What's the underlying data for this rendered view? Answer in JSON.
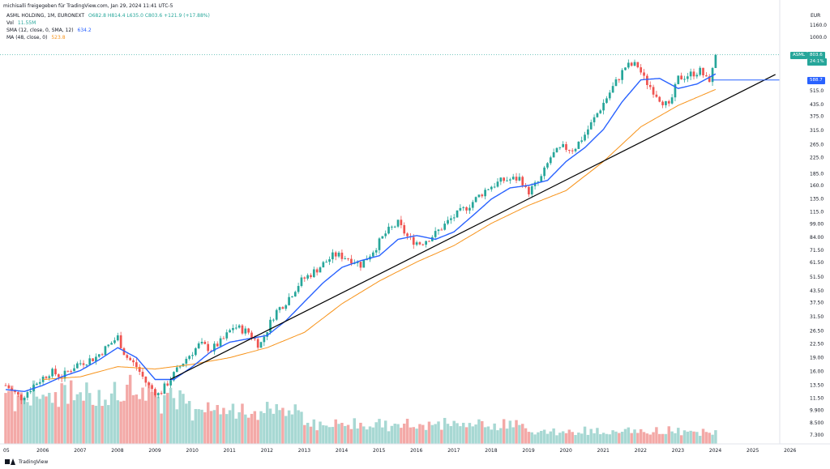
{
  "header": {
    "attribution": "michisalli freigegeben für TradingView.com, Jan 29, 2024 11:41 UTC-5"
  },
  "legend": {
    "symbol_line": {
      "name": "ASML HOLDING, 1M, EURONEXT",
      "ohlc": "O682.8  H814.4  L635.0  C803.6  +121.9 (+17.88%)"
    },
    "vol": {
      "label": "Vol",
      "value": "11.55M"
    },
    "sma": {
      "label": "SMA (12, close, 0, SMA, 12)",
      "value": "634.2"
    },
    "ma": {
      "label": "MA (48, close, 0)",
      "value": "523.8"
    }
  },
  "currency": "EUR",
  "badges": {
    "symbol": "ASML",
    "price": "803.6",
    "countdown": "24:1%",
    "line_level": "588.7"
  },
  "footer": {
    "brand": "TradingView"
  },
  "colors": {
    "up": "#26a69a",
    "down": "#ef5350",
    "vol_up": "#a7d8d3",
    "vol_down": "#f3a9a7",
    "sma": "#2962ff",
    "ma": "#f7931a",
    "trend": "#000000",
    "level": "#2962ff"
  },
  "chart_data": {
    "type": "candlestick",
    "title": "ASML HOLDING, 1M, EURONEXT",
    "y_scale": "log",
    "ylim": [
      6.5,
      1300
    ],
    "xlim": [
      2005.0,
      2026.7
    ],
    "y_ticks": [
      "1160.0",
      "1000.0",
      "515.0",
      "435.0",
      "375.0",
      "315.0",
      "265.0",
      "225.0",
      "185.0",
      "160.0",
      "135.0",
      "115.0",
      "99.00",
      "84.00",
      "71.50",
      "61.50",
      "51.50",
      "43.50",
      "37.50",
      "31.50",
      "26.50",
      "22.50",
      "19.00",
      "16.00",
      "13.50",
      "11.50",
      "9.900",
      "8.500",
      "7.300"
    ],
    "x_ticks": [
      "05",
      "2006",
      "2007",
      "2008",
      "2009",
      "2010",
      "2011",
      "2012",
      "2013",
      "2014",
      "2015",
      "2016",
      "2017",
      "2018",
      "2019",
      "2020",
      "2021",
      "2022",
      "2023",
      "2024",
      "2025",
      "2026"
    ],
    "anchors": [
      [
        2005.0,
        13.5
      ],
      [
        2005.4,
        11.5
      ],
      [
        2005.8,
        13.8
      ],
      [
        2006.2,
        16.0
      ],
      [
        2006.5,
        15.0
      ],
      [
        2006.9,
        17.5
      ],
      [
        2007.4,
        19.0
      ],
      [
        2007.8,
        22.5
      ],
      [
        2008.0,
        24.5
      ],
      [
        2008.2,
        19.5
      ],
      [
        2008.5,
        17.0
      ],
      [
        2008.8,
        13.5
      ],
      [
        2009.1,
        12.0
      ],
      [
        2009.4,
        14.5
      ],
      [
        2009.8,
        18.5
      ],
      [
        2010.2,
        22.5
      ],
      [
        2010.5,
        21.0
      ],
      [
        2010.8,
        23.5
      ],
      [
        2011.1,
        28.0
      ],
      [
        2011.5,
        26.0
      ],
      [
        2011.8,
        22.0
      ],
      [
        2012.2,
        33.0
      ],
      [
        2012.5,
        38.0
      ],
      [
        2012.9,
        49.0
      ],
      [
        2013.3,
        56.0
      ],
      [
        2013.8,
        68.0
      ],
      [
        2014.2,
        65.0
      ],
      [
        2014.5,
        60.0
      ],
      [
        2014.8,
        70.0
      ],
      [
        2015.2,
        90.0
      ],
      [
        2015.5,
        100.0
      ],
      [
        2015.8,
        82.0
      ],
      [
        2016.1,
        78.0
      ],
      [
        2016.5,
        88.0
      ],
      [
        2016.9,
        105.0
      ],
      [
        2017.4,
        125.0
      ],
      [
        2017.9,
        155.0
      ],
      [
        2018.3,
        170.0
      ],
      [
        2018.8,
        175.0
      ],
      [
        2018.95,
        145.0
      ],
      [
        2019.3,
        170.0
      ],
      [
        2019.6,
        230.0
      ],
      [
        2019.9,
        255.0
      ],
      [
        2020.2,
        250.0
      ],
      [
        2020.5,
        300.0
      ],
      [
        2020.9,
        410.0
      ],
      [
        2021.3,
        560.0
      ],
      [
        2021.6,
        700.0
      ],
      [
        2021.9,
        710.0
      ],
      [
        2022.1,
        590.0
      ],
      [
        2022.5,
        470.0
      ],
      [
        2022.75,
        420.0
      ],
      [
        2023.0,
        600.0
      ],
      [
        2023.3,
        630.0
      ],
      [
        2023.6,
        660.0
      ],
      [
        2023.8,
        570.0
      ],
      [
        2023.95,
        690.0
      ],
      [
        2024.0,
        803.6
      ]
    ],
    "sma_anchors": [
      [
        2005.0,
        12.8
      ],
      [
        2005.5,
        12.5
      ],
      [
        2006.0,
        13.5
      ],
      [
        2006.5,
        15.0
      ],
      [
        2007.0,
        16.2
      ],
      [
        2007.5,
        18.5
      ],
      [
        2008.0,
        21.5
      ],
      [
        2008.5,
        19.0
      ],
      [
        2009.0,
        14.5
      ],
      [
        2009.5,
        14.5
      ],
      [
        2010.0,
        17.0
      ],
      [
        2010.5,
        20.5
      ],
      [
        2011.0,
        23.0
      ],
      [
        2011.5,
        24.0
      ],
      [
        2012.0,
        25.0
      ],
      [
        2012.5,
        30.0
      ],
      [
        2013.0,
        38.0
      ],
      [
        2013.5,
        48.0
      ],
      [
        2014.0,
        58.0
      ],
      [
        2014.5,
        63.0
      ],
      [
        2015.0,
        67.0
      ],
      [
        2015.5,
        82.0
      ],
      [
        2016.0,
        86.0
      ],
      [
        2016.5,
        82.0
      ],
      [
        2017.0,
        90.0
      ],
      [
        2017.5,
        110.0
      ],
      [
        2018.0,
        135.0
      ],
      [
        2018.5,
        155.0
      ],
      [
        2019.0,
        160.0
      ],
      [
        2019.5,
        170.0
      ],
      [
        2020.0,
        215.0
      ],
      [
        2020.5,
        255.0
      ],
      [
        2021.0,
        320.0
      ],
      [
        2021.5,
        450.0
      ],
      [
        2022.0,
        590.0
      ],
      [
        2022.5,
        600.0
      ],
      [
        2023.0,
        530.0
      ],
      [
        2023.5,
        560.0
      ],
      [
        2024.0,
        634.2
      ]
    ],
    "ma_anchors": [
      [
        2006.0,
        14.5
      ],
      [
        2007.0,
        15.0
      ],
      [
        2008.0,
        17.0
      ],
      [
        2009.0,
        16.5
      ],
      [
        2010.0,
        17.5
      ],
      [
        2011.0,
        19.0
      ],
      [
        2012.0,
        21.5
      ],
      [
        2013.0,
        26.0
      ],
      [
        2014.0,
        37.0
      ],
      [
        2015.0,
        49.0
      ],
      [
        2016.0,
        62.0
      ],
      [
        2017.0,
        76.0
      ],
      [
        2018.0,
        100.0
      ],
      [
        2019.0,
        125.0
      ],
      [
        2020.0,
        150.0
      ],
      [
        2021.0,
        215.0
      ],
      [
        2022.0,
        330.0
      ],
      [
        2023.0,
        430.0
      ],
      [
        2024.0,
        523.8
      ]
    ],
    "trendline": [
      [
        2009.4,
        14.5
      ],
      [
        2025.6,
        630.0
      ]
    ],
    "level_line": {
      "from": 2023.9,
      "value": 588.7
    },
    "current_price": 803.6,
    "volume_pattern": [
      0.62,
      0.48,
      0.55,
      0.4,
      0.52,
      0.45,
      0.58,
      0.5,
      0.47,
      0.6,
      0.42,
      0.55,
      0.49,
      0.63,
      0.51,
      0.44,
      0.57,
      0.48,
      0.53,
      0.59,
      0.46,
      0.61,
      0.5,
      0.43,
      0.56,
      0.52,
      0.6,
      0.47,
      0.54,
      0.49,
      0.58,
      0.45,
      0.62,
      0.51,
      0.48,
      0.55,
      0.5,
      0.57,
      0.44,
      0.53
    ]
  }
}
